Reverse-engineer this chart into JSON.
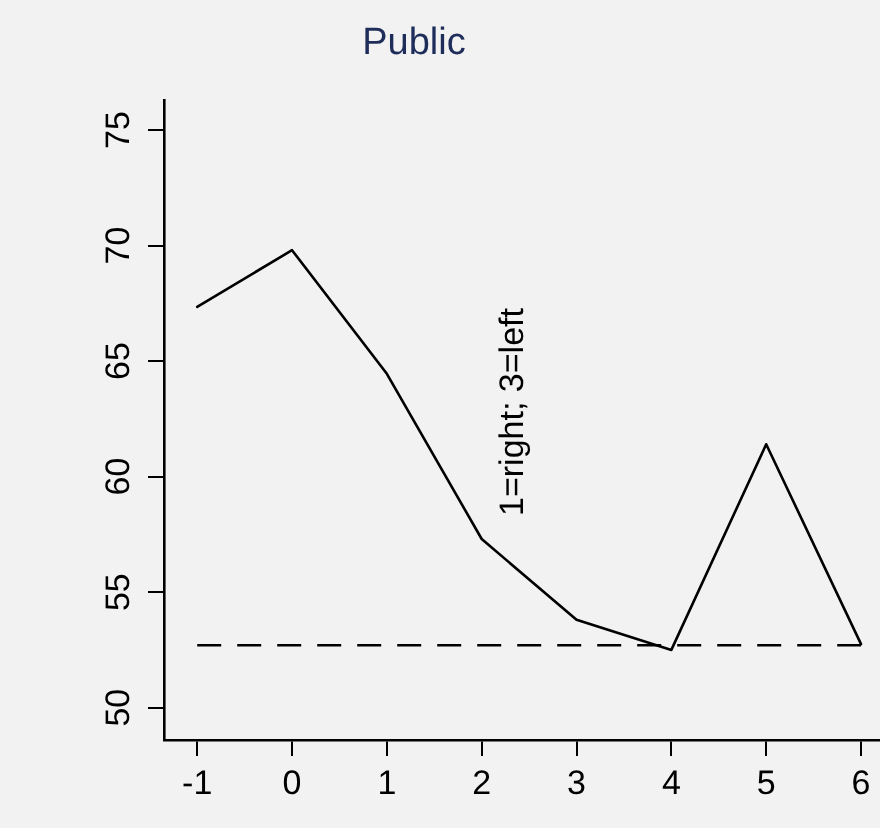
{
  "chart_data": {
    "type": "line",
    "title": "Public",
    "x": [
      -1,
      0,
      1,
      2,
      3,
      4,
      5,
      6
    ],
    "series": [
      {
        "color": "#000000",
        "values": [
          67.35,
          69.8,
          64.45,
          57.3,
          53.8,
          52.5,
          61.4,
          52.75
        ]
      }
    ],
    "xlim": [
      -1.35,
      6.2
    ],
    "xticks": [
      -1,
      0,
      1,
      2,
      3,
      4,
      5,
      6
    ],
    "ylim": [
      48.6,
      76.3
    ],
    "yticks": [
      50,
      55,
      60,
      65,
      70,
      75
    ],
    "ref_lines": [
      {
        "axis": "y",
        "value": 52.7,
        "color": "#000000",
        "line_style": "dashed"
      }
    ],
    "annotations": [
      "1=right; 3=left"
    ],
    "grid": false,
    "legend": false,
    "marker": "none",
    "line_style": "solid"
  }
}
